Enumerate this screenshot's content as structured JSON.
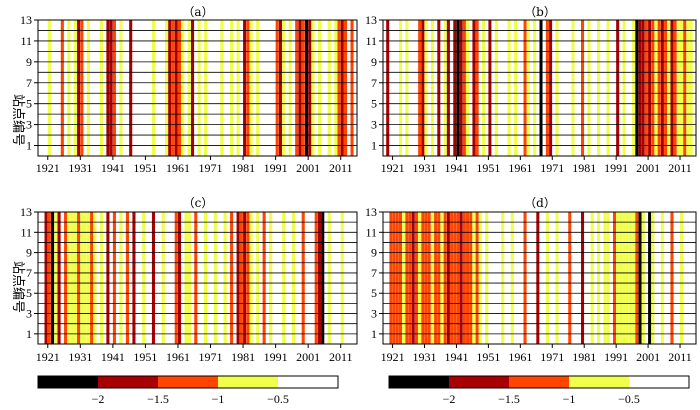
{
  "figure": {
    "ylabel": "站点编号",
    "panel_labels": [
      "（a）",
      "（b）",
      "（c）",
      "（d）"
    ]
  },
  "colorbar": {
    "colors": [
      "#000000",
      "#a80000",
      "#ff4500",
      "#f0ff4a",
      "#ffffff"
    ],
    "tick_labels": [
      "−2",
      "−1.5",
      "−1",
      "−0.5"
    ]
  },
  "chart_data": [
    {
      "type": "heatmap",
      "title": "（a）",
      "ylabel": "站点编号",
      "x_tick_labels": [
        "1921",
        "1931",
        "1941",
        "1951",
        "1961",
        "1971",
        "1981",
        "1991",
        "2001",
        "2011"
      ],
      "y_tick_labels": [
        "1",
        "3",
        "5",
        "7",
        "9",
        "11",
        "13"
      ],
      "xlim": [
        1918,
        2016
      ],
      "ylim": [
        0,
        13
      ],
      "grid": true,
      "columns": [
        {
          "year": 1921,
          "level": "y"
        },
        {
          "year": 1925,
          "level": "o"
        },
        {
          "year": 1927,
          "level": "y"
        },
        {
          "year": 1929,
          "level": "y"
        },
        {
          "year": 1930,
          "level": "r"
        },
        {
          "year": 1931,
          "level": "o"
        },
        {
          "year": 1933,
          "level": "y"
        },
        {
          "year": 1937,
          "level": "y"
        },
        {
          "year": 1939,
          "level": "r"
        },
        {
          "year": 1940,
          "level": "r"
        },
        {
          "year": 1941,
          "level": "o"
        },
        {
          "year": 1943,
          "level": "y"
        },
        {
          "year": 1946,
          "level": "r"
        },
        {
          "year": 1953,
          "level": "y"
        },
        {
          "year": 1957,
          "level": "y"
        },
        {
          "year": 1958,
          "level": "r"
        },
        {
          "year": 1959,
          "level": "o"
        },
        {
          "year": 1960,
          "level": "r"
        },
        {
          "year": 1961,
          "level": "o"
        },
        {
          "year": 1962,
          "level": "y"
        },
        {
          "year": 1964,
          "level": "y"
        },
        {
          "year": 1965,
          "level": "r"
        },
        {
          "year": 1967,
          "level": "y"
        },
        {
          "year": 1969,
          "level": "y"
        },
        {
          "year": 1974,
          "level": "y"
        },
        {
          "year": 1977,
          "level": "y"
        },
        {
          "year": 1979,
          "level": "y"
        },
        {
          "year": 1981,
          "level": "r"
        },
        {
          "year": 1982,
          "level": "o"
        },
        {
          "year": 1983,
          "level": "y"
        },
        {
          "year": 1985,
          "level": "y"
        },
        {
          "year": 1991,
          "level": "o"
        },
        {
          "year": 1992,
          "level": "r"
        },
        {
          "year": 1993,
          "level": "y"
        },
        {
          "year": 1995,
          "level": "y"
        },
        {
          "year": 1997,
          "level": "o"
        },
        {
          "year": 1998,
          "level": "r"
        },
        {
          "year": 1999,
          "level": "o"
        },
        {
          "year": 2000,
          "level": "b"
        },
        {
          "year": 2001,
          "level": "r"
        },
        {
          "year": 2002,
          "level": "y"
        },
        {
          "year": 2004,
          "level": "y"
        },
        {
          "year": 2007,
          "level": "y"
        },
        {
          "year": 2009,
          "level": "y"
        },
        {
          "year": 2010,
          "level": "o"
        },
        {
          "year": 2011,
          "level": "r"
        },
        {
          "year": 2012,
          "level": "o"
        },
        {
          "year": 2014,
          "level": "o"
        }
      ]
    },
    {
      "type": "heatmap",
      "title": "（b）",
      "ylabel": "",
      "x_tick_labels": [
        "1921",
        "1931",
        "1941",
        "1951",
        "1961",
        "1971",
        "1981",
        "1991",
        "2001",
        "2011"
      ],
      "y_tick_labels": [
        "1",
        "3",
        "5",
        "7",
        "9",
        "11",
        "13"
      ],
      "xlim": [
        1918,
        2016
      ],
      "ylim": [
        0,
        13
      ],
      "grid": true,
      "columns": [
        {
          "year": 1919,
          "level": "r"
        },
        {
          "year": 1923,
          "level": "y"
        },
        {
          "year": 1925,
          "level": "y"
        },
        {
          "year": 1929,
          "level": "o"
        },
        {
          "year": 1930,
          "level": "r"
        },
        {
          "year": 1931,
          "level": "y"
        },
        {
          "year": 1933,
          "level": "y"
        },
        {
          "year": 1935,
          "level": "r"
        },
        {
          "year": 1937,
          "level": "y"
        },
        {
          "year": 1938,
          "level": "r"
        },
        {
          "year": 1940,
          "level": "r"
        },
        {
          "year": 1941,
          "level": "b"
        },
        {
          "year": 1942,
          "level": "r"
        },
        {
          "year": 1943,
          "level": "o"
        },
        {
          "year": 1944,
          "level": "y"
        },
        {
          "year": 1946,
          "level": "r"
        },
        {
          "year": 1947,
          "level": "o"
        },
        {
          "year": 1949,
          "level": "y"
        },
        {
          "year": 1951,
          "level": "r"
        },
        {
          "year": 1953,
          "level": "y"
        },
        {
          "year": 1957,
          "level": "y"
        },
        {
          "year": 1959,
          "level": "y"
        },
        {
          "year": 1962,
          "level": "o"
        },
        {
          "year": 1963,
          "level": "y"
        },
        {
          "year": 1965,
          "level": "y"
        },
        {
          "year": 1967,
          "level": "b"
        },
        {
          "year": 1969,
          "level": "o"
        },
        {
          "year": 1970,
          "level": "r"
        },
        {
          "year": 1972,
          "level": "y"
        },
        {
          "year": 1977,
          "level": "y"
        },
        {
          "year": 1980,
          "level": "o"
        },
        {
          "year": 1982,
          "level": "y"
        },
        {
          "year": 1985,
          "level": "y"
        },
        {
          "year": 1988,
          "level": "y"
        },
        {
          "year": 1991,
          "level": "r"
        },
        {
          "year": 1993,
          "level": "y"
        },
        {
          "year": 1996,
          "level": "y"
        },
        {
          "year": 1997,
          "level": "b"
        },
        {
          "year": 1998,
          "level": "r"
        },
        {
          "year": 1999,
          "level": "r"
        },
        {
          "year": 2000,
          "level": "o"
        },
        {
          "year": 2001,
          "level": "r"
        },
        {
          "year": 2002,
          "level": "o"
        },
        {
          "year": 2003,
          "level": "y"
        },
        {
          "year": 2004,
          "level": "o"
        },
        {
          "year": 2005,
          "level": "r"
        },
        {
          "year": 2006,
          "level": "o"
        },
        {
          "year": 2007,
          "level": "y"
        },
        {
          "year": 2008,
          "level": "r"
        },
        {
          "year": 2009,
          "level": "o"
        },
        {
          "year": 2010,
          "level": "y"
        },
        {
          "year": 2011,
          "level": "y"
        },
        {
          "year": 2012,
          "level": "o"
        },
        {
          "year": 2013,
          "level": "y"
        },
        {
          "year": 2014,
          "level": "y"
        }
      ]
    },
    {
      "type": "heatmap",
      "title": "（c）",
      "ylabel": "站点编号",
      "x_tick_labels": [
        "1921",
        "1931",
        "1941",
        "1951",
        "1961",
        "1971",
        "1981",
        "1991",
        "2001",
        "2011"
      ],
      "y_tick_labels": [
        "1",
        "3",
        "5",
        "7",
        "9",
        "11",
        "13"
      ],
      "xlim": [
        1918,
        2016
      ],
      "ylim": [
        0,
        13
      ],
      "grid": true,
      "columns": [
        {
          "year": 1920,
          "level": "r"
        },
        {
          "year": 1921,
          "level": "o"
        },
        {
          "year": 1922,
          "level": "b"
        },
        {
          "year": 1923,
          "level": "y"
        },
        {
          "year": 1924,
          "level": "r"
        },
        {
          "year": 1926,
          "level": "o"
        },
        {
          "year": 1927,
          "level": "y"
        },
        {
          "year": 1928,
          "level": "y"
        },
        {
          "year": 1929,
          "level": "y"
        },
        {
          "year": 1930,
          "level": "o"
        },
        {
          "year": 1931,
          "level": "y"
        },
        {
          "year": 1932,
          "level": "y"
        },
        {
          "year": 1933,
          "level": "y"
        },
        {
          "year": 1934,
          "level": "o"
        },
        {
          "year": 1935,
          "level": "y"
        },
        {
          "year": 1937,
          "level": "y"
        },
        {
          "year": 1939,
          "level": "r"
        },
        {
          "year": 1941,
          "level": "o"
        },
        {
          "year": 1943,
          "level": "y"
        },
        {
          "year": 1945,
          "level": "o"
        },
        {
          "year": 1947,
          "level": "r"
        },
        {
          "year": 1950,
          "level": "y"
        },
        {
          "year": 1953,
          "level": "r"
        },
        {
          "year": 1956,
          "level": "y"
        },
        {
          "year": 1960,
          "level": "o"
        },
        {
          "year": 1961,
          "level": "r"
        },
        {
          "year": 1963,
          "level": "y"
        },
        {
          "year": 1964,
          "level": "y"
        },
        {
          "year": 1966,
          "level": "o"
        },
        {
          "year": 1969,
          "level": "y"
        },
        {
          "year": 1972,
          "level": "y"
        },
        {
          "year": 1975,
          "level": "y"
        },
        {
          "year": 1977,
          "level": "o"
        },
        {
          "year": 1979,
          "level": "r"
        },
        {
          "year": 1980,
          "level": "o"
        },
        {
          "year": 1981,
          "level": "r"
        },
        {
          "year": 1982,
          "level": "o"
        },
        {
          "year": 1983,
          "level": "y"
        },
        {
          "year": 1985,
          "level": "y"
        },
        {
          "year": 1987,
          "level": "o"
        },
        {
          "year": 1989,
          "level": "y"
        },
        {
          "year": 1993,
          "level": "y"
        },
        {
          "year": 1996,
          "level": "y"
        },
        {
          "year": 1999,
          "level": "o"
        },
        {
          "year": 2003,
          "level": "o"
        },
        {
          "year": 2004,
          "level": "r"
        },
        {
          "year": 2005,
          "level": "b"
        },
        {
          "year": 2007,
          "level": "y"
        },
        {
          "year": 2011,
          "level": "y"
        }
      ]
    },
    {
      "type": "heatmap",
      "title": "（d）",
      "ylabel": "",
      "x_tick_labels": [
        "1921",
        "1931",
        "1941",
        "1951",
        "1961",
        "1971",
        "1981",
        "1991",
        "2001",
        "2011"
      ],
      "y_tick_labels": [
        "1",
        "3",
        "5",
        "7",
        "9",
        "11",
        "13"
      ],
      "xlim": [
        1918,
        2016
      ],
      "ylim": [
        0,
        13
      ],
      "grid": true,
      "columns": [
        {
          "year": 1920,
          "level": "o"
        },
        {
          "year": 1921,
          "level": "o"
        },
        {
          "year": 1922,
          "level": "o"
        },
        {
          "year": 1923,
          "level": "o"
        },
        {
          "year": 1924,
          "level": "y"
        },
        {
          "year": 1925,
          "level": "o"
        },
        {
          "year": 1926,
          "level": "o"
        },
        {
          "year": 1927,
          "level": "r"
        },
        {
          "year": 1928,
          "level": "o"
        },
        {
          "year": 1929,
          "level": "y"
        },
        {
          "year": 1930,
          "level": "o"
        },
        {
          "year": 1931,
          "level": "o"
        },
        {
          "year": 1932,
          "level": "o"
        },
        {
          "year": 1933,
          "level": "y"
        },
        {
          "year": 1934,
          "level": "o"
        },
        {
          "year": 1935,
          "level": "o"
        },
        {
          "year": 1936,
          "level": "y"
        },
        {
          "year": 1937,
          "level": "o"
        },
        {
          "year": 1938,
          "level": "r"
        },
        {
          "year": 1939,
          "level": "o"
        },
        {
          "year": 1940,
          "level": "o"
        },
        {
          "year": 1941,
          "level": "o"
        },
        {
          "year": 1942,
          "level": "r"
        },
        {
          "year": 1943,
          "level": "o"
        },
        {
          "year": 1944,
          "level": "o"
        },
        {
          "year": 1945,
          "level": "o"
        },
        {
          "year": 1946,
          "level": "y"
        },
        {
          "year": 1947,
          "level": "o"
        },
        {
          "year": 1948,
          "level": "y"
        },
        {
          "year": 1950,
          "level": "y"
        },
        {
          "year": 1955,
          "level": "y"
        },
        {
          "year": 1958,
          "level": "y"
        },
        {
          "year": 1962,
          "level": "o"
        },
        {
          "year": 1966,
          "level": "r"
        },
        {
          "year": 1969,
          "level": "y"
        },
        {
          "year": 1972,
          "level": "y"
        },
        {
          "year": 1976,
          "level": "o"
        },
        {
          "year": 1980,
          "level": "r"
        },
        {
          "year": 1983,
          "level": "y"
        },
        {
          "year": 1985,
          "level": "y"
        },
        {
          "year": 1987,
          "level": "y"
        },
        {
          "year": 1988,
          "level": "y"
        },
        {
          "year": 1990,
          "level": "o"
        },
        {
          "year": 1991,
          "level": "y"
        },
        {
          "year": 1992,
          "level": "y"
        },
        {
          "year": 1993,
          "level": "y"
        },
        {
          "year": 1994,
          "level": "y"
        },
        {
          "year": 1995,
          "level": "y"
        },
        {
          "year": 1996,
          "level": "y"
        },
        {
          "year": 1997,
          "level": "o"
        },
        {
          "year": 1998,
          "level": "b"
        },
        {
          "year": 1999,
          "level": "y"
        },
        {
          "year": 2001,
          "level": "b"
        },
        {
          "year": 2002,
          "level": "y"
        },
        {
          "year": 2005,
          "level": "y"
        },
        {
          "year": 2008,
          "level": "o"
        },
        {
          "year": 2011,
          "level": "y"
        }
      ]
    }
  ]
}
